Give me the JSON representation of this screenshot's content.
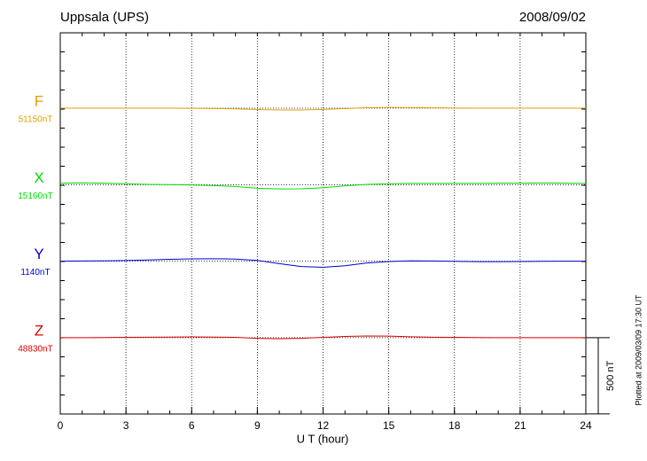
{
  "chart_data": {
    "type": "line",
    "title": "Uppsala (UPS)",
    "date": "2008/09/02",
    "x_label": "U T (hour)",
    "x": [
      0,
      1,
      2,
      3,
      4,
      5,
      6,
      7,
      8,
      9,
      10,
      11,
      12,
      13,
      14,
      15,
      16,
      17,
      18,
      19,
      20,
      21,
      22,
      23,
      24
    ],
    "xlim": [
      0,
      24
    ],
    "xticks": [
      0,
      3,
      6,
      9,
      12,
      15,
      18,
      21,
      24
    ],
    "series": [
      {
        "name": "F",
        "color": "#e0a000",
        "baseline": {
          "value": 51150,
          "label": "51150nT"
        },
        "values": [
          51150,
          51150,
          51150,
          51150,
          51150,
          51150,
          51149,
          51148,
          51146,
          51141,
          51138,
          51138,
          51142,
          51147,
          51153,
          51155,
          51154,
          51152,
          51151,
          51150,
          51150,
          51150,
          51150,
          51150,
          51150
        ]
      },
      {
        "name": "X",
        "color": "#00dd00",
        "baseline": {
          "value": 15160,
          "label": "15160nT"
        },
        "values": [
          15170,
          15172,
          15170,
          15166,
          15162,
          15160,
          15158,
          15154,
          15148,
          15136,
          15132,
          15133,
          15140,
          15152,
          15162,
          15166,
          15168,
          15168,
          15168,
          15168,
          15170,
          15170,
          15171,
          15170,
          15168
        ]
      },
      {
        "name": "Y",
        "color": "#0000cc",
        "baseline": {
          "value": 1140,
          "label": "1140nT"
        },
        "values": [
          1140,
          1141,
          1142,
          1144,
          1148,
          1152,
          1155,
          1156,
          1154,
          1145,
          1124,
          1105,
          1100,
          1110,
          1128,
          1138,
          1142,
          1141,
          1139,
          1137,
          1137,
          1138,
          1139,
          1140,
          1140
        ]
      },
      {
        "name": "Z",
        "color": "#dd0000",
        "baseline": {
          "value": 48830,
          "label": "48830nT"
        },
        "values": [
          48830,
          48830,
          48831,
          48832,
          48833,
          48834,
          48835,
          48834,
          48832,
          48826,
          48823,
          48826,
          48832,
          48838,
          48841,
          48840,
          48836,
          48833,
          48832,
          48831,
          48830,
          48830,
          48830,
          48830,
          48830
        ]
      }
    ],
    "scale_bar": {
      "value": 500,
      "label": "500 nT"
    },
    "footnote": "Plotted at 2009/03/09 17:30 UT"
  }
}
